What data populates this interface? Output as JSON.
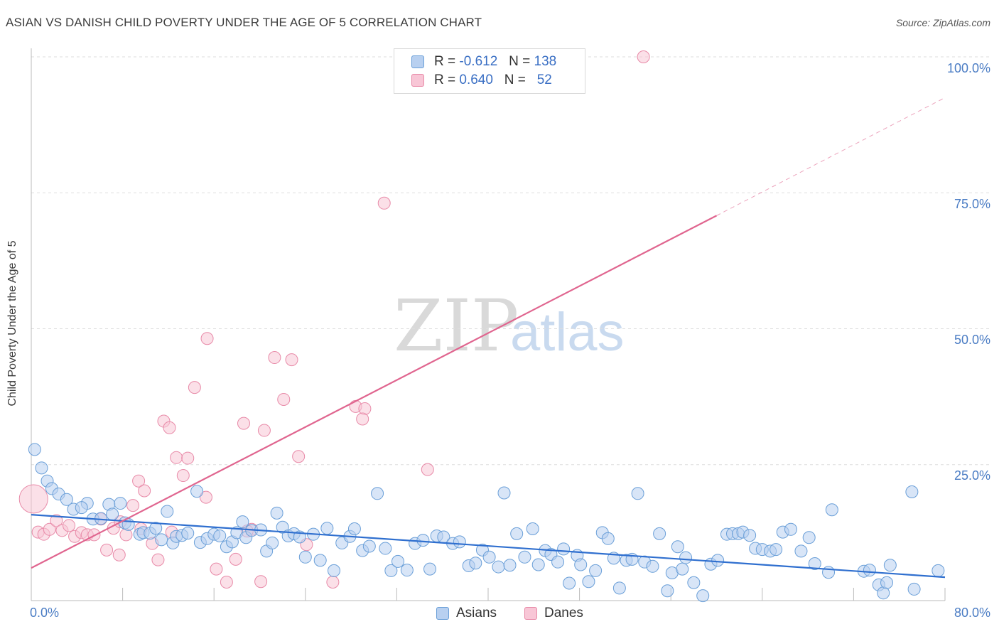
{
  "title": "ASIAN VS DANISH CHILD POVERTY UNDER THE AGE OF 5 CORRELATION CHART",
  "source": "Source: ZipAtlas.com",
  "watermark": {
    "part1": "ZIP",
    "part2": "atlas"
  },
  "legend": {
    "rows": [
      {
        "r_label": "R =",
        "r_value": "-0.612",
        "n_label": "N =",
        "n_value": "138"
      },
      {
        "r_label": "R =",
        "r_value": "0.640",
        "n_label": "N =",
        "n_value": "52"
      }
    ]
  },
  "bottom_legend": {
    "asians": "Asians",
    "danes": "Danes"
  },
  "colors": {
    "asian_fill": "#b8d0f0",
    "asian_stroke": "#6a9fd8",
    "asian_line": "#2f6fcf",
    "dane_fill": "#f8c6d6",
    "dane_stroke": "#e88aa8",
    "dane_line": "#e0658f",
    "tick_text": "#4a7cc4",
    "grid": "#dddddd"
  },
  "chart_data": {
    "type": "scatter",
    "title": "ASIAN VS DANISH CHILD POVERTY UNDER THE AGE OF 5 CORRELATION CHART",
    "xlabel": "",
    "ylabel": "Child Poverty Under the Age of 5",
    "xlim": [
      0,
      80
    ],
    "ylim": [
      0,
      100
    ],
    "x_tick_labels": [
      "0.0%",
      "80.0%"
    ],
    "y_tick_labels": [
      "100.0%",
      "75.0%",
      "50.0%",
      "25.0%"
    ],
    "y_ticks": [
      100,
      75,
      50,
      25
    ],
    "grid": "horizontal dashed",
    "legend_position": "top-center",
    "series": [
      {
        "name": "Asians",
        "r": -0.612,
        "n": 138,
        "trend": {
          "x": [
            0,
            80
          ],
          "y": [
            15.8,
            4.3
          ]
        },
        "points": [
          [
            0.3,
            27.8
          ],
          [
            0.9,
            24.4
          ],
          [
            1.4,
            22.0
          ],
          [
            1.8,
            20.6
          ],
          [
            2.4,
            19.6
          ],
          [
            3.1,
            18.6
          ],
          [
            3.7,
            16.8
          ],
          [
            4.9,
            17.9
          ],
          [
            4.4,
            17.1
          ],
          [
            5.4,
            15.0
          ],
          [
            6.1,
            15.1
          ],
          [
            6.8,
            17.7
          ],
          [
            7.1,
            15.9
          ],
          [
            7.8,
            17.9
          ],
          [
            8.2,
            14.3
          ],
          [
            8.5,
            14.0
          ],
          [
            9.5,
            12.2
          ],
          [
            9.8,
            12.5
          ],
          [
            10.4,
            12.4
          ],
          [
            10.9,
            13.3
          ],
          [
            11.4,
            11.2
          ],
          [
            11.9,
            16.4
          ],
          [
            12.4,
            10.6
          ],
          [
            12.7,
            11.8
          ],
          [
            13.2,
            12.0
          ],
          [
            13.7,
            12.4
          ],
          [
            14.5,
            20.1
          ],
          [
            14.8,
            10.7
          ],
          [
            15.4,
            11.4
          ],
          [
            16.0,
            12.2
          ],
          [
            16.5,
            11.9
          ],
          [
            17.1,
            9.9
          ],
          [
            17.6,
            10.8
          ],
          [
            18.0,
            12.5
          ],
          [
            18.5,
            14.5
          ],
          [
            18.8,
            11.6
          ],
          [
            19.3,
            12.9
          ],
          [
            20.1,
            13.0
          ],
          [
            20.6,
            9.1
          ],
          [
            21.1,
            10.6
          ],
          [
            21.5,
            16.1
          ],
          [
            22.0,
            13.5
          ],
          [
            22.5,
            11.9
          ],
          [
            23.0,
            12.3
          ],
          [
            23.5,
            11.7
          ],
          [
            24.0,
            8.0
          ],
          [
            24.7,
            12.2
          ],
          [
            25.3,
            7.4
          ],
          [
            25.9,
            13.3
          ],
          [
            26.5,
            5.5
          ],
          [
            27.2,
            10.6
          ],
          [
            27.9,
            11.8
          ],
          [
            28.3,
            13.2
          ],
          [
            29.0,
            9.2
          ],
          [
            29.6,
            10.0
          ],
          [
            30.3,
            19.7
          ],
          [
            31.0,
            9.6
          ],
          [
            31.5,
            5.5
          ],
          [
            32.1,
            7.2
          ],
          [
            32.9,
            5.6
          ],
          [
            33.6,
            10.5
          ],
          [
            34.3,
            11.1
          ],
          [
            34.9,
            5.8
          ],
          [
            35.5,
            11.9
          ],
          [
            36.1,
            11.7
          ],
          [
            36.9,
            10.5
          ],
          [
            37.5,
            10.8
          ],
          [
            38.3,
            6.4
          ],
          [
            38.9,
            6.9
          ],
          [
            39.5,
            9.3
          ],
          [
            40.1,
            8.0
          ],
          [
            40.9,
            6.2
          ],
          [
            41.4,
            19.8
          ],
          [
            41.9,
            6.5
          ],
          [
            42.5,
            12.3
          ],
          [
            43.2,
            8.0
          ],
          [
            43.9,
            13.2
          ],
          [
            44.4,
            6.6
          ],
          [
            45.0,
            9.2
          ],
          [
            45.5,
            8.5
          ],
          [
            46.1,
            7.1
          ],
          [
            46.6,
            9.5
          ],
          [
            47.1,
            3.2
          ],
          [
            47.8,
            8.3
          ],
          [
            48.1,
            6.6
          ],
          [
            48.8,
            3.5
          ],
          [
            49.4,
            5.5
          ],
          [
            50.0,
            12.5
          ],
          [
            50.5,
            11.4
          ],
          [
            51.0,
            7.8
          ],
          [
            51.5,
            2.3
          ],
          [
            52.1,
            7.4
          ],
          [
            52.6,
            7.6
          ],
          [
            53.1,
            19.7
          ],
          [
            53.7,
            7.1
          ],
          [
            54.4,
            6.3
          ],
          [
            55.0,
            12.3
          ],
          [
            55.7,
            1.8
          ],
          [
            56.1,
            5.1
          ],
          [
            56.6,
            9.9
          ],
          [
            57.0,
            5.8
          ],
          [
            57.3,
            7.9
          ],
          [
            58.0,
            3.3
          ],
          [
            58.8,
            0.9
          ],
          [
            59.5,
            6.7
          ],
          [
            60.1,
            7.4
          ],
          [
            60.9,
            12.2
          ],
          [
            61.4,
            12.3
          ],
          [
            61.9,
            12.3
          ],
          [
            62.3,
            12.6
          ],
          [
            62.9,
            12.0
          ],
          [
            63.4,
            9.6
          ],
          [
            64.0,
            9.4
          ],
          [
            64.7,
            9.1
          ],
          [
            65.2,
            9.4
          ],
          [
            65.8,
            12.6
          ],
          [
            66.5,
            13.1
          ],
          [
            67.4,
            9.1
          ],
          [
            68.1,
            11.6
          ],
          [
            68.6,
            6.8
          ],
          [
            69.8,
            5.2
          ],
          [
            70.1,
            16.7
          ],
          [
            72.9,
            5.4
          ],
          [
            73.4,
            5.6
          ],
          [
            74.2,
            2.9
          ],
          [
            74.6,
            1.4
          ],
          [
            74.9,
            3.3
          ],
          [
            75.2,
            6.5
          ],
          [
            77.1,
            20.0
          ],
          [
            77.3,
            2.1
          ],
          [
            79.4,
            5.5
          ]
        ]
      },
      {
        "name": "Danes",
        "r": 0.64,
        "n": 52,
        "trend": {
          "x": [
            0,
            60
          ],
          "y": [
            6.0,
            70.8
          ]
        },
        "trend_dashed": {
          "x": [
            60,
            80
          ],
          "y": [
            70.8,
            92.5
          ]
        },
        "points": [
          [
            0.2,
            18.7
          ],
          [
            0.6,
            12.6
          ],
          [
            1.1,
            12.2
          ],
          [
            1.6,
            13.1
          ],
          [
            2.2,
            14.7
          ],
          [
            2.7,
            12.9
          ],
          [
            3.3,
            13.8
          ],
          [
            3.8,
            11.8
          ],
          [
            4.4,
            12.5
          ],
          [
            4.9,
            12.1
          ],
          [
            5.5,
            12.1
          ],
          [
            6.1,
            15.0
          ],
          [
            6.6,
            9.3
          ],
          [
            7.2,
            13.3
          ],
          [
            7.7,
            8.4
          ],
          [
            8.3,
            12.1
          ],
          [
            8.9,
            17.5
          ],
          [
            9.4,
            22.0
          ],
          [
            9.9,
            20.2
          ],
          [
            10.6,
            10.5
          ],
          [
            11.1,
            7.5
          ],
          [
            11.6,
            33.0
          ],
          [
            12.1,
            31.8
          ],
          [
            12.7,
            26.3
          ],
          [
            13.3,
            23.0
          ],
          [
            13.7,
            26.2
          ],
          [
            14.3,
            39.2
          ],
          [
            15.4,
            48.2
          ],
          [
            16.2,
            5.8
          ],
          [
            17.1,
            3.4
          ],
          [
            17.9,
            7.6
          ],
          [
            18.6,
            32.6
          ],
          [
            19.3,
            13.1
          ],
          [
            20.1,
            3.5
          ],
          [
            20.4,
            31.3
          ],
          [
            21.3,
            44.7
          ],
          [
            22.1,
            37.0
          ],
          [
            22.8,
            44.3
          ],
          [
            23.4,
            26.5
          ],
          [
            24.1,
            10.3
          ],
          [
            26.4,
            3.4
          ],
          [
            28.4,
            35.7
          ],
          [
            29.2,
            35.3
          ],
          [
            29.0,
            33.4
          ],
          [
            30.9,
            73.1
          ],
          [
            34.7,
            24.1
          ],
          [
            53.6,
            100.0
          ],
          [
            15.3,
            19.0
          ],
          [
            7.8,
            14.5
          ],
          [
            9.6,
            13.2
          ],
          [
            12.3,
            12.6
          ],
          [
            18.9,
            12.8
          ]
        ]
      }
    ]
  }
}
